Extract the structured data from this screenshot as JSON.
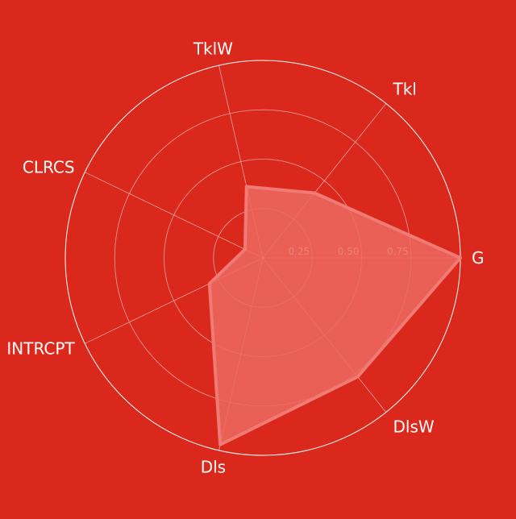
{
  "chart_data": {
    "type": "radar",
    "categories": [
      "G",
      "Tkl",
      "TklW",
      "CLRCS",
      "INTRCPT",
      "Dls",
      "DlsW"
    ],
    "series": [
      {
        "values": [
          1.0,
          0.42,
          0.37,
          0.1,
          0.3,
          0.97,
          0.77
        ]
      }
    ],
    "rlim": [
      0,
      1
    ],
    "radial_ticks": [
      0.25,
      0.5,
      0.75
    ],
    "radial_tick_labels": [
      "0.25",
      "0.50",
      "0.75"
    ],
    "grid": true
  },
  "colors": {
    "background": "#da291c",
    "fill": "#ec6860",
    "stroke": "#f07a74",
    "grid": "#e8a39d",
    "outer_ring": "#ffffff",
    "text": "#ffffff"
  }
}
